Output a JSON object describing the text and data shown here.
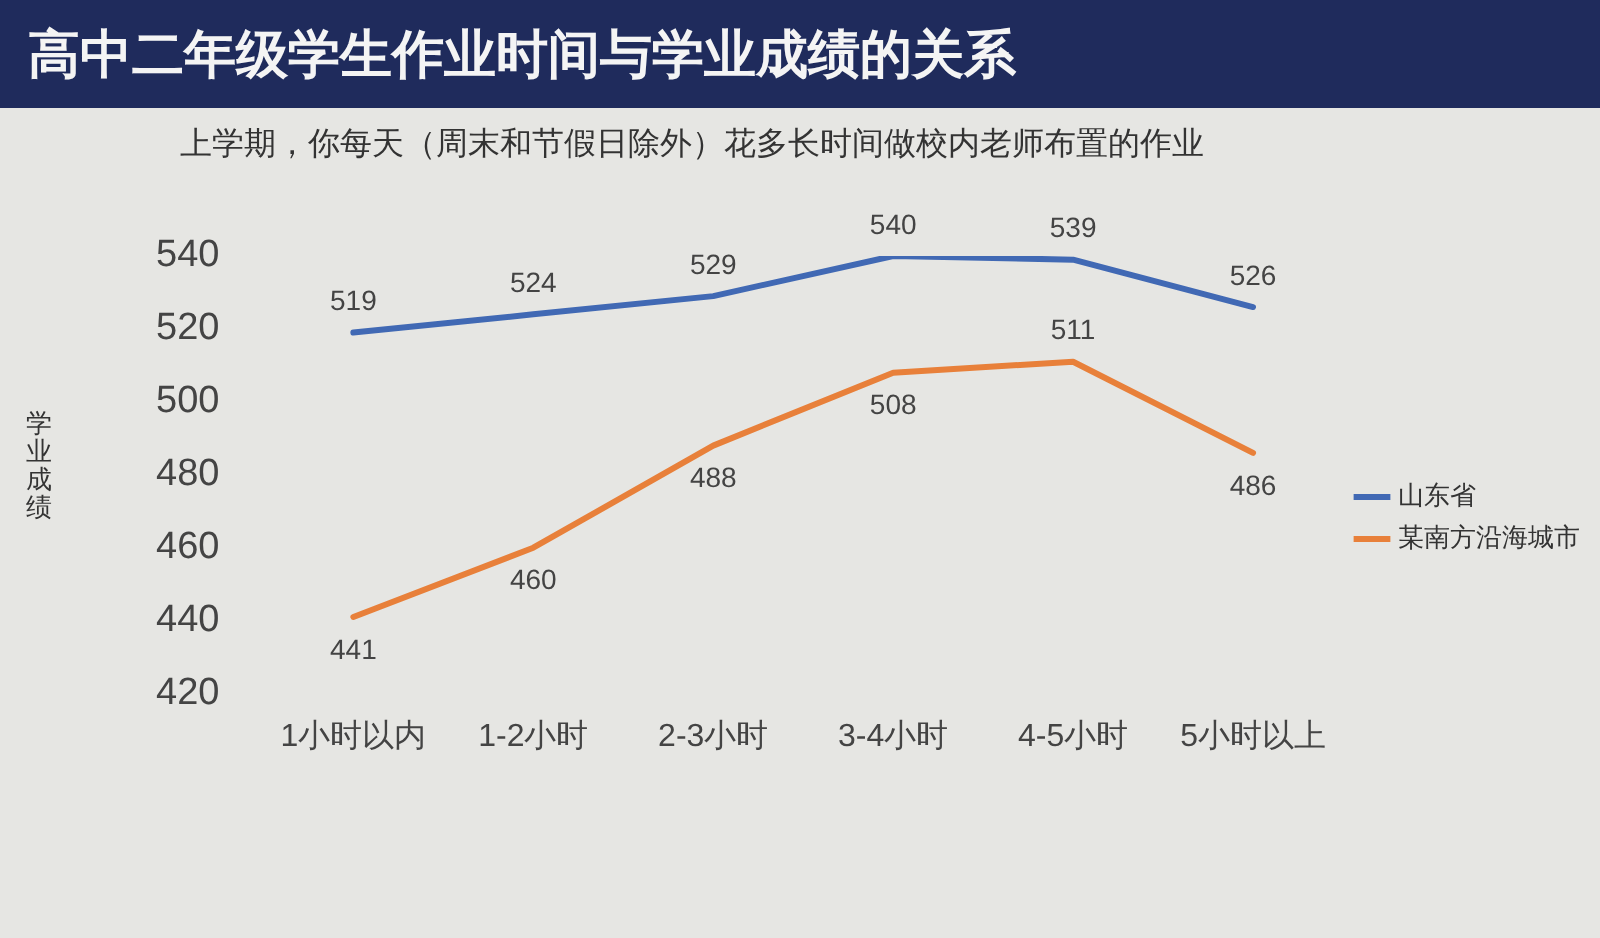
{
  "chart_data": {
    "type": "line",
    "title": "高中二年级学生作业时间与学业成绩的关系",
    "subtitle": "上学期，你每天（周末和节假日除外）花多长时间做校内老师布置的作业",
    "ylabel": "学业成绩",
    "categories": [
      "1小时以内",
      "1-2小时",
      "2-3小时",
      "3-4小时",
      "4-5小时",
      "5小时以上"
    ],
    "series": [
      {
        "name": "山东省",
        "color": "#4169b4",
        "values": [
          519,
          524,
          529,
          540,
          539,
          526
        ]
      },
      {
        "name": "某南方沿海城市",
        "color": "#e8803a",
        "values": [
          441,
          460,
          488,
          508,
          511,
          486
        ]
      }
    ],
    "ylim": [
      420,
      540
    ],
    "yticks": [
      420,
      440,
      460,
      480,
      500,
      520,
      540
    ],
    "data_labels": true,
    "legend": "right"
  }
}
